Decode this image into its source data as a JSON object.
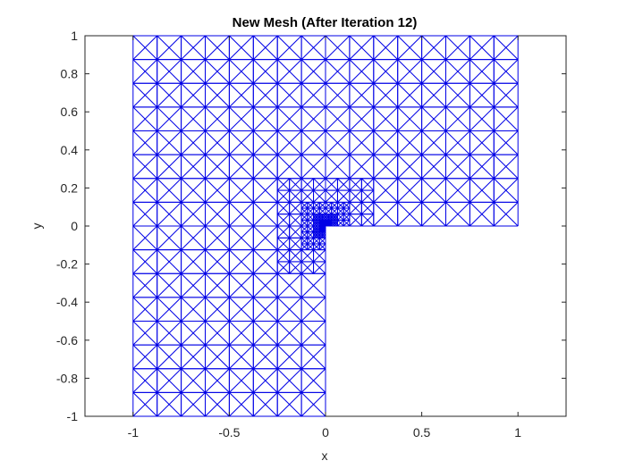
{
  "chart_data": {
    "type": "mesh",
    "title": "New Mesh (After Iteration 12)",
    "xlabel": "x",
    "ylabel": "y",
    "xlim": [
      -1.25,
      1.25
    ],
    "ylim": [
      -1,
      1
    ],
    "xticks": [
      -1,
      -0.5,
      0,
      0.5,
      1
    ],
    "xtick_labels": [
      "-1",
      "-0.5",
      "0",
      "0.5",
      "1"
    ],
    "yticks": [
      -1,
      -0.8,
      -0.6,
      -0.4,
      -0.2,
      0,
      0.2,
      0.4,
      0.6,
      0.8,
      1
    ],
    "ytick_labels": [
      "-1",
      "-0.8",
      "-0.6",
      "-0.4",
      "-0.2",
      "0",
      "0.2",
      "0.4",
      "0.6",
      "0.8",
      "1"
    ],
    "domain": "L-shaped region [-1,1]x[-1,1] excluding (0,1]x[-1,0)",
    "refinement_point": [
      0,
      0
    ],
    "mesh_color": "#0000e6",
    "grid": false,
    "box": true
  }
}
